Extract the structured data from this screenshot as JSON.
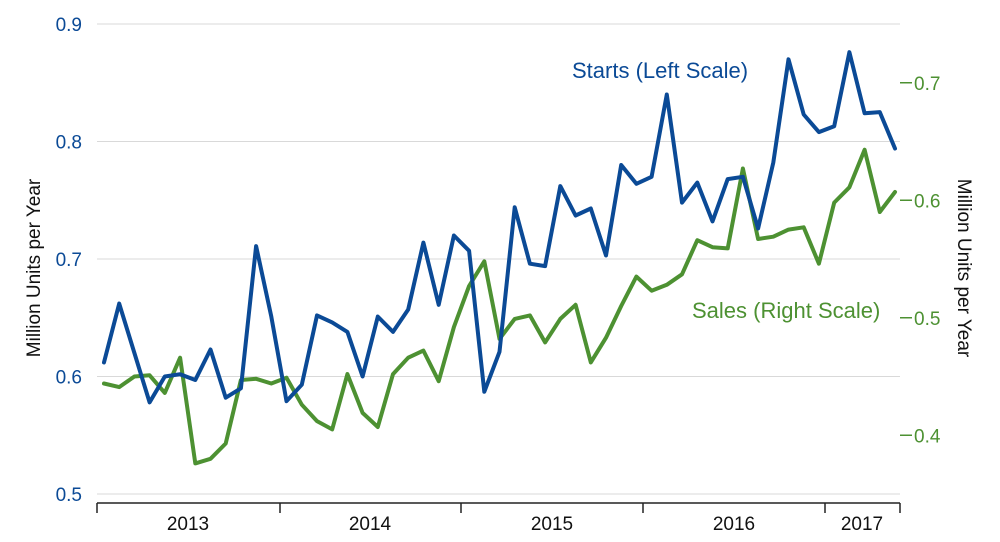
{
  "chart_data": {
    "type": "line",
    "title": "",
    "x_labels": [
      "2013",
      "2014",
      "2015",
      "2016",
      "2017"
    ],
    "ylabel_left": "Million Units  per Year",
    "ylabel_right": "Million Units  per Year",
    "ylim_left": [
      0.5,
      0.9
    ],
    "ylim_right": [
      0.35,
      0.75
    ],
    "yticks_left": [
      "0.5",
      "0.6",
      "0.7",
      "0.8",
      "0.9"
    ],
    "yticks_right": [
      "0.4",
      "0.5",
      "0.6",
      "0.7"
    ],
    "colors": {
      "starts": "#0b4a96",
      "sales": "#4d9132",
      "grid": "#d9d9d9"
    },
    "series": [
      {
        "name": "Starts",
        "label": "Starts (Left Scale)",
        "axis": "left",
        "values": [
          0.612,
          0.662,
          0.62,
          0.578,
          0.6,
          0.602,
          0.597,
          0.623,
          0.582,
          0.59,
          0.711,
          0.651,
          0.579,
          0.593,
          0.652,
          0.646,
          0.638,
          0.6,
          0.651,
          0.638,
          0.657,
          0.714,
          0.661,
          0.72,
          0.707,
          0.587,
          0.621,
          0.744,
          0.696,
          0.694,
          0.762,
          0.737,
          0.743,
          0.703,
          0.78,
          0.764,
          0.77,
          0.84,
          0.748,
          0.765,
          0.732,
          0.768,
          0.77,
          0.726,
          0.782,
          0.87,
          0.823,
          0.808,
          0.813,
          0.876,
          0.824,
          0.825,
          0.794
        ]
      },
      {
        "name": "Sales",
        "label": "Sales (Right Scale)",
        "axis": "right",
        "values": [
          0.444,
          0.441,
          0.45,
          0.451,
          0.436,
          0.466,
          0.376,
          0.38,
          0.393,
          0.447,
          0.448,
          0.444,
          0.449,
          0.426,
          0.412,
          0.405,
          0.452,
          0.419,
          0.407,
          0.452,
          0.466,
          0.472,
          0.446,
          0.492,
          0.527,
          0.548,
          0.482,
          0.499,
          0.502,
          0.479,
          0.499,
          0.511,
          0.462,
          0.483,
          0.51,
          0.535,
          0.523,
          0.528,
          0.537,
          0.566,
          0.56,
          0.559,
          0.627,
          0.567,
          0.569,
          0.575,
          0.577,
          0.546,
          0.598,
          0.611,
          0.643,
          0.59,
          0.607
        ]
      }
    ]
  }
}
